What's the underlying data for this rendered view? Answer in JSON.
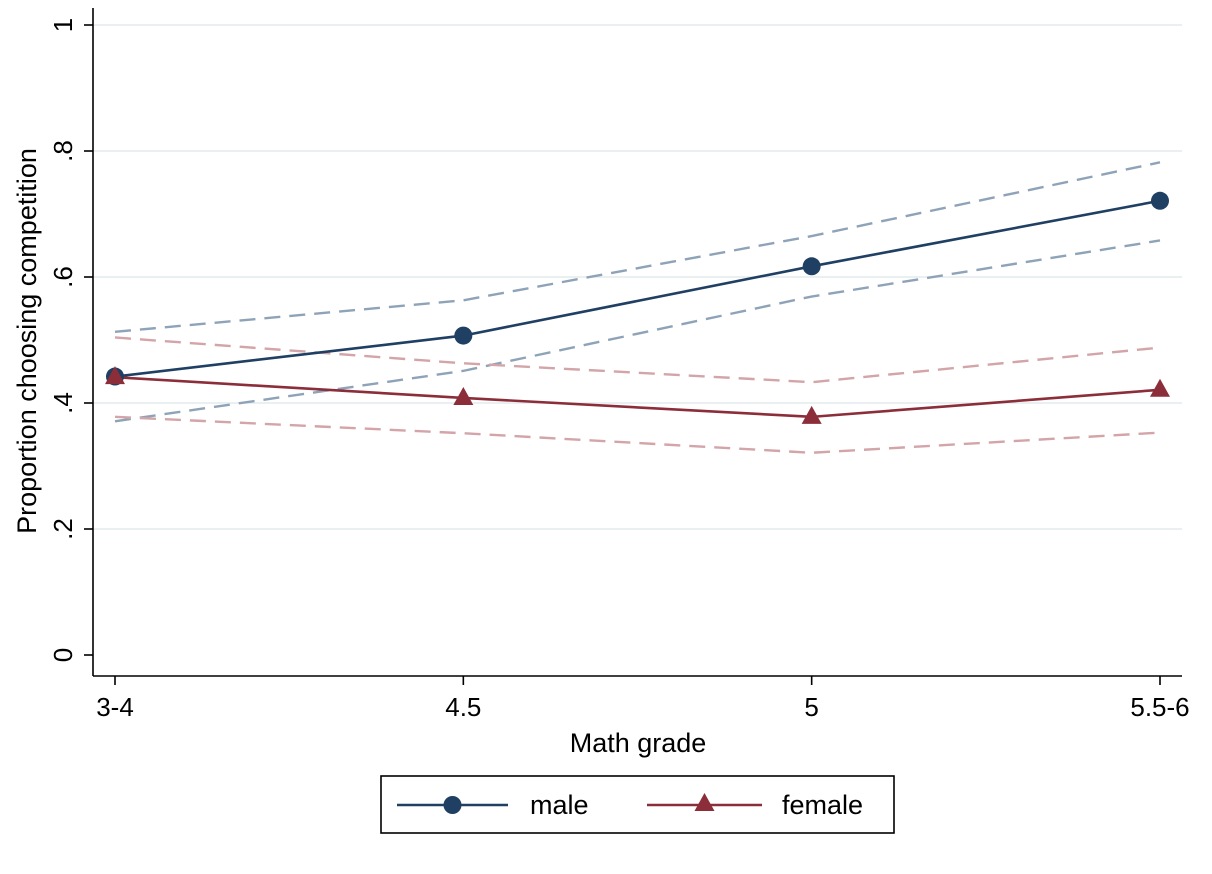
{
  "chart_data": {
    "type": "line",
    "categories": [
      "3-4",
      "4.5",
      "5",
      "5.5-6"
    ],
    "xlabel": "Math grade",
    "ylabel": "Proportion choosing competition",
    "ylim": [
      0,
      1
    ],
    "yticks": [
      {
        "value": 0,
        "label": "0"
      },
      {
        "value": 0.2,
        "label": ".2"
      },
      {
        "value": 0.4,
        "label": ".4"
      },
      {
        "value": 0.6,
        "label": ".6"
      },
      {
        "value": 0.8,
        "label": ".8"
      },
      {
        "value": 1,
        "label": "1"
      }
    ],
    "grid": true,
    "legend_position": "bottom",
    "series": [
      {
        "name": "male",
        "marker": "circle",
        "color": "#1f3f63",
        "ci_color": "#8ea3b8",
        "values": [
          0.442,
          0.507,
          0.617,
          0.721
        ],
        "ci_upper": [
          0.513,
          0.563,
          0.665,
          0.782
        ],
        "ci_lower": [
          0.371,
          0.451,
          0.569,
          0.658
        ]
      },
      {
        "name": "female",
        "marker": "triangle",
        "color": "#8c2e3a",
        "ci_color": "#d3a4a8",
        "values": [
          0.441,
          0.408,
          0.378,
          0.421
        ],
        "ci_upper": [
          0.504,
          0.463,
          0.433,
          0.488
        ],
        "ci_lower": [
          0.378,
          0.352,
          0.321,
          0.353
        ]
      }
    ]
  }
}
